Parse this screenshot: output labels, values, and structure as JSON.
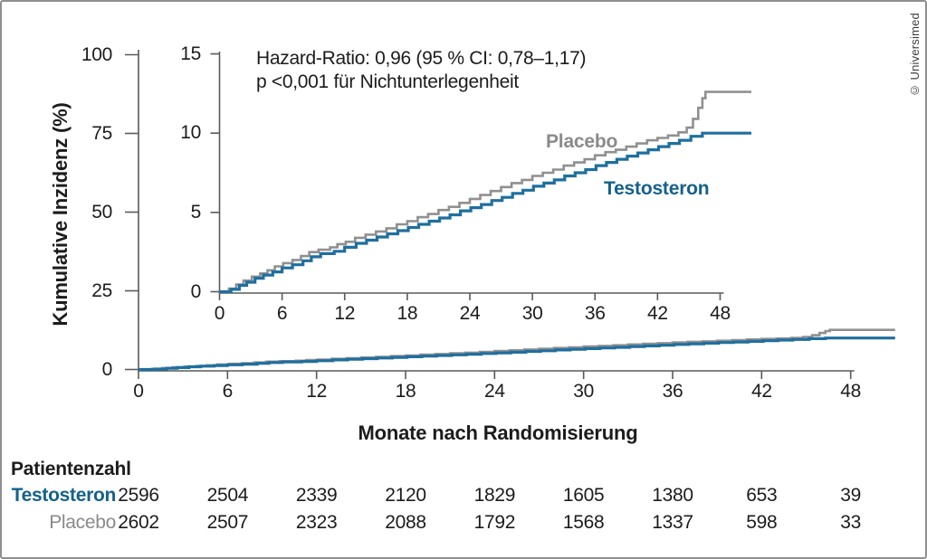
{
  "credit": "© Universimed",
  "annotation": {
    "line1": "Hazard-Ratio: 0,96 (95 % CI: 0,78–1,17)",
    "line2": "p <0,001 für Nichtunterlegenheit"
  },
  "colors": {
    "testosteron_line": "#1f6f9f",
    "testosteron_text": "#15618b",
    "placebo_line": "#909090",
    "placebo_text": "#8a8a8a",
    "axis": "#5a5a5a",
    "text": "#1c1c1c"
  },
  "chart_data": {
    "type": "line",
    "style": "step",
    "title": "",
    "xlabel": "Monate nach Randomisierung",
    "ylabel": "Kumulative Inzidenz (%)",
    "main_axis": {
      "xlim": [
        0,
        51
      ],
      "ylim": [
        0,
        100
      ],
      "xticks": [
        0,
        6,
        12,
        18,
        24,
        30,
        36,
        42,
        48
      ],
      "yticks": [
        0,
        25,
        50,
        75,
        100
      ],
      "grid": false
    },
    "inset_axis": {
      "xlim": [
        0,
        51
      ],
      "ylim": [
        0,
        15
      ],
      "xticks": [
        0,
        6,
        12,
        18,
        24,
        30,
        36,
        42,
        48
      ],
      "yticks": [
        0,
        5,
        10,
        15
      ],
      "grid": false
    },
    "series": [
      {
        "name": "Placebo",
        "points": [
          [
            0,
            0
          ],
          [
            0.9,
            0.2
          ],
          [
            1.6,
            0.45
          ],
          [
            2.3,
            0.7
          ],
          [
            3.1,
            0.95
          ],
          [
            3.9,
            1.15
          ],
          [
            4.6,
            1.35
          ],
          [
            5.3,
            1.6
          ],
          [
            6.1,
            1.8
          ],
          [
            7.0,
            2.0
          ],
          [
            7.8,
            2.25
          ],
          [
            8.6,
            2.5
          ],
          [
            9.5,
            2.65
          ],
          [
            10.6,
            2.8
          ],
          [
            11.3,
            3.0
          ],
          [
            12.1,
            3.15
          ],
          [
            13.0,
            3.4
          ],
          [
            14.0,
            3.6
          ],
          [
            15.0,
            3.8
          ],
          [
            16.0,
            4.0
          ],
          [
            17.0,
            4.25
          ],
          [
            18.0,
            4.45
          ],
          [
            19.0,
            4.7
          ],
          [
            20.0,
            4.9
          ],
          [
            21.0,
            5.15
          ],
          [
            22.0,
            5.35
          ],
          [
            23.0,
            5.6
          ],
          [
            24.0,
            5.85
          ],
          [
            25.0,
            6.1
          ],
          [
            26.0,
            6.35
          ],
          [
            27.0,
            6.6
          ],
          [
            28.0,
            6.85
          ],
          [
            29.0,
            7.05
          ],
          [
            30.0,
            7.3
          ],
          [
            31.0,
            7.5
          ],
          [
            32.0,
            7.7
          ],
          [
            33.0,
            7.95
          ],
          [
            34.0,
            8.15
          ],
          [
            35.0,
            8.35
          ],
          [
            36.0,
            8.6
          ],
          [
            37.0,
            8.8
          ],
          [
            38.0,
            8.95
          ],
          [
            39.0,
            9.15
          ],
          [
            40.0,
            9.35
          ],
          [
            41.0,
            9.55
          ],
          [
            42.0,
            9.7
          ],
          [
            43.0,
            9.85
          ],
          [
            44.0,
            10.05
          ],
          [
            44.8,
            10.35
          ],
          [
            45.4,
            10.9
          ],
          [
            45.9,
            11.6
          ],
          [
            46.3,
            12.2
          ],
          [
            46.6,
            12.6
          ],
          [
            51,
            12.6
          ]
        ]
      },
      {
        "name": "Testosteron",
        "points": [
          [
            0,
            0
          ],
          [
            1.1,
            0.15
          ],
          [
            1.9,
            0.4
          ],
          [
            2.6,
            0.6
          ],
          [
            3.4,
            0.85
          ],
          [
            4.2,
            1.05
          ],
          [
            5.1,
            1.25
          ],
          [
            6.0,
            1.5
          ],
          [
            7.0,
            1.7
          ],
          [
            8.0,
            1.95
          ],
          [
            8.8,
            2.2
          ],
          [
            9.7,
            2.4
          ],
          [
            11.0,
            2.55
          ],
          [
            12.0,
            2.8
          ],
          [
            13.1,
            3.05
          ],
          [
            14.1,
            3.25
          ],
          [
            15.1,
            3.45
          ],
          [
            16.1,
            3.65
          ],
          [
            17.1,
            3.85
          ],
          [
            18.1,
            4.05
          ],
          [
            19.1,
            4.25
          ],
          [
            20.1,
            4.45
          ],
          [
            21.1,
            4.65
          ],
          [
            22.1,
            4.85
          ],
          [
            23.1,
            5.1
          ],
          [
            24.1,
            5.3
          ],
          [
            25.1,
            5.5
          ],
          [
            26.1,
            5.75
          ],
          [
            27.1,
            5.95
          ],
          [
            28.1,
            6.2
          ],
          [
            29.1,
            6.4
          ],
          [
            30.1,
            6.65
          ],
          [
            31.1,
            6.85
          ],
          [
            32.1,
            7.05
          ],
          [
            33.1,
            7.3
          ],
          [
            34.1,
            7.5
          ],
          [
            35.1,
            7.7
          ],
          [
            36.1,
            7.95
          ],
          [
            37.1,
            8.15
          ],
          [
            38.1,
            8.35
          ],
          [
            39.1,
            8.55
          ],
          [
            40.1,
            8.75
          ],
          [
            41.1,
            8.95
          ],
          [
            42.1,
            9.15
          ],
          [
            43.1,
            9.35
          ],
          [
            44.1,
            9.55
          ],
          [
            45.2,
            9.8
          ],
          [
            46.3,
            10.0
          ],
          [
            51,
            10.0
          ]
        ]
      }
    ]
  },
  "curve_labels": {
    "placebo": "Placebo",
    "testosteron": "Testosteron"
  },
  "risk_table": {
    "title": "Patientenzahl",
    "timepoints": [
      0,
      6,
      12,
      18,
      24,
      30,
      36,
      42,
      48
    ],
    "rows": [
      {
        "label": "Testosteron",
        "values": [
          "2596",
          "2504",
          "2339",
          "2120",
          "1829",
          "1605",
          "1380",
          "653",
          "39"
        ]
      },
      {
        "label": "Placebo",
        "values": [
          "2602",
          "2507",
          "2323",
          "2088",
          "1792",
          "1568",
          "1337",
          "598",
          "33"
        ]
      }
    ]
  }
}
